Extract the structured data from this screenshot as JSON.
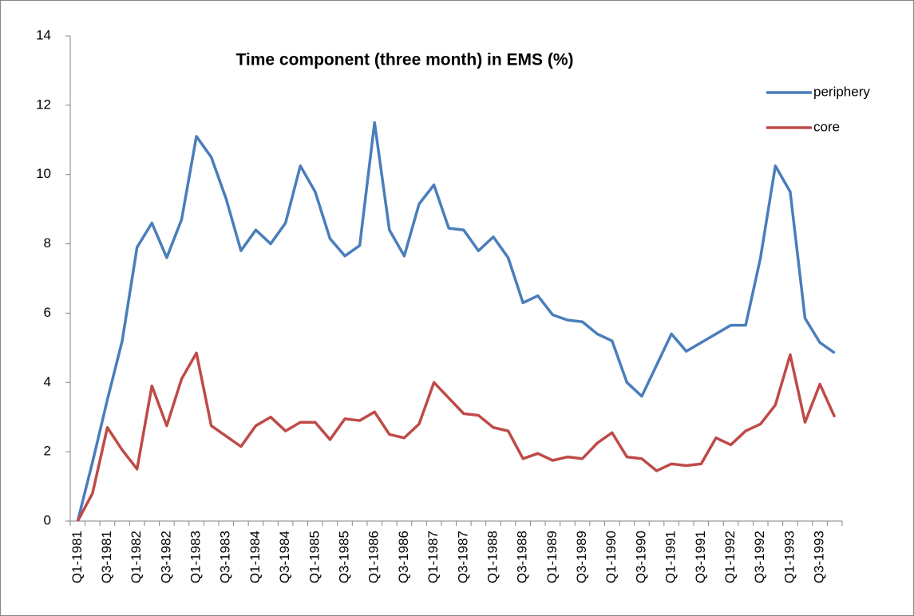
{
  "chart_data": {
    "type": "line",
    "title": "Time component (three month) in EMS (%)",
    "categories": [
      "Q1-1981",
      null,
      "Q3-1981",
      null,
      "Q1-1982",
      null,
      "Q3-1982",
      null,
      "Q1-1983",
      null,
      "Q3-1983",
      null,
      "Q1-1984",
      null,
      "Q3-1984",
      null,
      "Q1-1985",
      null,
      "Q3-1985",
      null,
      "Q1-1986",
      null,
      "Q3-1986",
      null,
      "Q1-1987",
      null,
      "Q3-1987",
      null,
      "Q1-1988",
      null,
      "Q3-1988",
      null,
      "Q1-1989",
      null,
      "Q3-1989",
      null,
      "Q1-1990",
      null,
      "Q3-1990",
      null,
      "Q1-1991",
      null,
      "Q3-1991",
      null,
      "Q1-1992",
      null,
      "Q3-1992",
      null,
      "Q1-1993",
      null,
      "Q3-1993",
      null
    ],
    "series": [
      {
        "name": "periphery",
        "color": "#4a7ebb",
        "values": [
          0,
          1.7,
          3.5,
          5.2,
          7.9,
          8.6,
          7.6,
          8.7,
          11.1,
          10.5,
          9.3,
          7.8,
          8.4,
          8.0,
          8.6,
          10.25,
          9.5,
          8.15,
          7.65,
          7.95,
          11.5,
          8.4,
          7.65,
          9.15,
          9.7,
          8.45,
          8.4,
          7.8,
          8.2,
          7.6,
          6.3,
          6.5,
          5.95,
          5.8,
          5.75,
          5.4,
          5.2,
          4.0,
          3.6,
          4.5,
          5.4,
          4.9,
          5.15,
          5.4,
          5.65,
          5.65,
          7.6,
          10.25,
          9.5,
          5.85,
          5.15,
          4.85
        ]
      },
      {
        "name": "core",
        "color": "#be4b48",
        "values": [
          0,
          0.8,
          2.7,
          2.05,
          1.5,
          3.9,
          2.75,
          4.1,
          4.85,
          2.75,
          2.45,
          2.15,
          2.75,
          3.0,
          2.6,
          2.85,
          2.85,
          2.35,
          2.95,
          2.9,
          3.15,
          2.5,
          2.4,
          2.8,
          4.0,
          3.55,
          3.1,
          3.05,
          2.7,
          2.6,
          1.8,
          1.95,
          1.75,
          1.85,
          1.8,
          2.25,
          2.55,
          1.85,
          1.8,
          1.45,
          1.65,
          1.6,
          1.65,
          2.4,
          2.2,
          2.6,
          2.8,
          3.35,
          4.8,
          2.85,
          3.95,
          3.0
        ]
      }
    ],
    "ylim": [
      0,
      14
    ],
    "yticks": [
      0,
      2,
      4,
      6,
      8,
      10,
      12,
      14
    ],
    "grid": false,
    "legend": "top-right"
  }
}
